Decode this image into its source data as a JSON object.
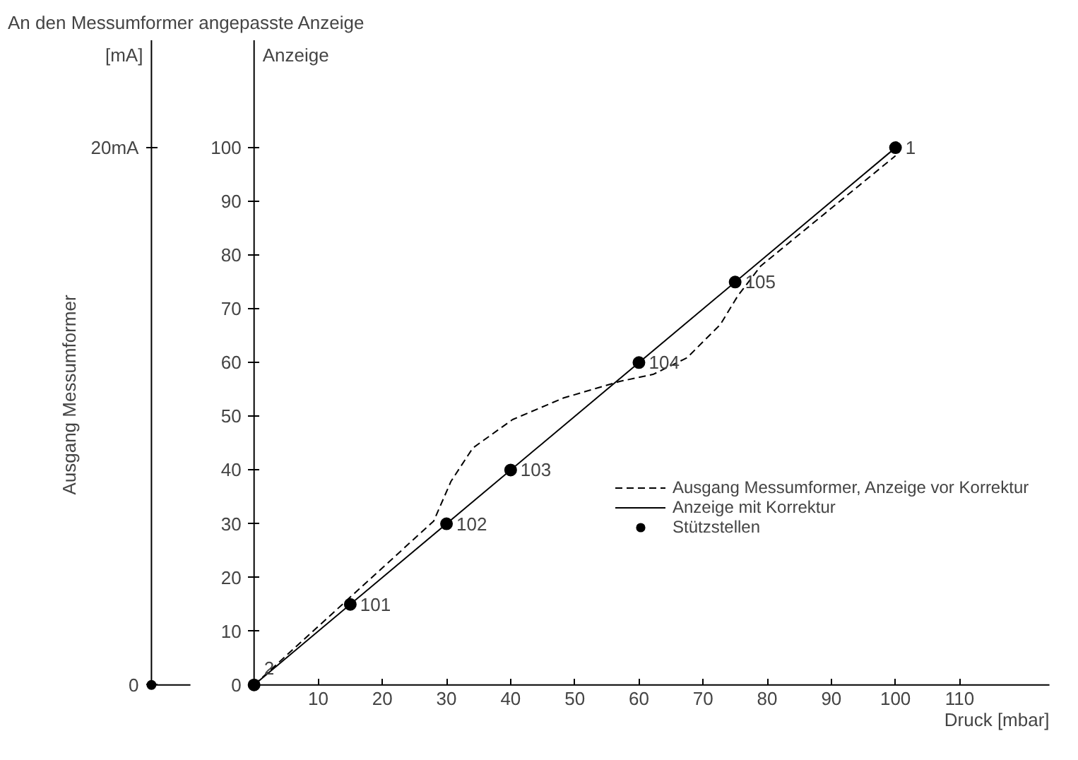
{
  "chart_data": {
    "type": "line",
    "title": "An den Messumformer angepasste Anzeige",
    "xlabel": "Druck [mbar]",
    "ylabel": "Anzeige",
    "y2label": "Ausgang Messumformer",
    "annotations": [
      "[mA]",
      {
        "text": "2",
        "x": 0,
        "y": 0
      },
      {
        "text": "101",
        "x": 15,
        "y": 15
      },
      {
        "text": "102",
        "x": 30,
        "y": 30
      },
      {
        "text": "103",
        "x": 40,
        "y": 40
      },
      {
        "text": "104",
        "x": 60,
        "y": 60
      },
      {
        "text": "105",
        "x": 75,
        "y": 75
      },
      {
        "text": "1",
        "x": 100,
        "y": 100
      }
    ],
    "xlim": [
      -16,
      124
    ],
    "ylim": [
      0,
      120
    ],
    "xticks": [
      10,
      20,
      30,
      40,
      50,
      60,
      70,
      80,
      90,
      100,
      110
    ],
    "yticks": [
      0,
      10,
      20,
      30,
      40,
      50,
      60,
      70,
      80,
      90,
      100
    ],
    "y2lim": [
      0,
      24
    ],
    "y2ticks": [
      0,
      {
        "value": 20,
        "label": "20mA"
      }
    ],
    "legend": "right",
    "grid": false,
    "series": [
      {
        "name": "Ausgang Messumformer, Anzeige vor Korrektur",
        "color": "#000000",
        "line_style": "dashed",
        "x": [
          0,
          28,
          30.7,
          34.1,
          40.3,
          48.2,
          57,
          62.2,
          67.5,
          72.7,
          75.4,
          79,
          100
        ],
        "values": [
          0,
          30.5,
          37.9,
          44.1,
          49.4,
          53.4,
          56.5,
          57.8,
          60.9,
          67.1,
          72.4,
          78,
          98.5
        ]
      },
      {
        "name": "Anzeige mit Korrektur",
        "color": "#000000",
        "line_style": "solid",
        "x": [
          0,
          100
        ],
        "values": [
          0,
          100
        ]
      },
      {
        "name": "Stützstellen",
        "type": "scatter",
        "marker": "circle",
        "color": "#000000",
        "x": [
          0,
          15,
          30,
          40,
          60,
          75,
          100
        ],
        "values": [
          0,
          15,
          30,
          40,
          60,
          75,
          100
        ]
      }
    ]
  }
}
